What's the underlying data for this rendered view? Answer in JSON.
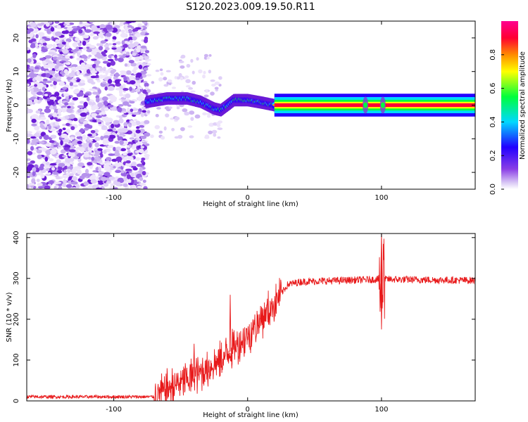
{
  "title": "S120.2023.009.19.50.R11",
  "chart_data": [
    {
      "type": "heatmap",
      "xlabel": "Height of straight line (km)",
      "ylabel": "Frequency (Hz)",
      "xlim": [
        -165,
        170
      ],
      "ylim": [
        -25,
        25
      ],
      "x_ticks": [
        -100,
        0,
        100
      ],
      "y_ticks": [
        -20,
        -10,
        0,
        10,
        20
      ],
      "colorbar": {
        "label": "Normalized spectral amplitude",
        "range": [
          0,
          1
        ],
        "ticks": [
          0.0,
          0.2,
          0.4,
          0.6,
          0.8
        ],
        "colors": [
          "#ffffff",
          "#cdb4f2",
          "#7a2ae0",
          "#2200ff",
          "#00d8ff",
          "#00ff3c",
          "#ffff00",
          "#ff6e00",
          "#ff0032",
          "#ff0090"
        ]
      },
      "tone_frequency_track": [
        {
          "x": -75,
          "y": 1
        },
        {
          "x": -60,
          "y": 2
        },
        {
          "x": -45,
          "y": 2
        },
        {
          "x": -35,
          "y": 1
        },
        {
          "x": -25,
          "y": -1
        },
        {
          "x": -20,
          "y": -1.5
        },
        {
          "x": -15,
          "y": 0
        },
        {
          "x": -10,
          "y": 1.5
        },
        {
          "x": 0,
          "y": 1.5
        },
        {
          "x": 10,
          "y": 0.8
        },
        {
          "x": 20,
          "y": 0
        },
        {
          "x": 170,
          "y": 0
        }
      ],
      "noise_region_x": [
        -165,
        -75
      ]
    },
    {
      "type": "line",
      "xlabel": "Height of straight line (km)",
      "ylabel": "SNR (10 * v/v)",
      "xlim": [
        -165,
        170
      ],
      "ylim": [
        0,
        410
      ],
      "x_ticks": [
        -100,
        0,
        100
      ],
      "y_ticks": [
        0,
        100,
        200,
        300,
        400
      ],
      "series": [
        {
          "color": "#e8191a",
          "trend": [
            {
              "x": -165,
              "y": 10
            },
            {
              "x": -70,
              "y": 10
            },
            {
              "x": -60,
              "y": 30
            },
            {
              "x": -40,
              "y": 60
            },
            {
              "x": -20,
              "y": 100
            },
            {
              "x": 0,
              "y": 160
            },
            {
              "x": 20,
              "y": 240
            },
            {
              "x": 30,
              "y": 285
            },
            {
              "x": 40,
              "y": 292
            },
            {
              "x": 100,
              "y": 298
            },
            {
              "x": 170,
              "y": 295
            }
          ],
          "notable_extremes": [
            {
              "x": -40,
              "y": 140
            },
            {
              "x": -13,
              "y": 260
            },
            {
              "x": 100,
              "y": 410
            },
            {
              "x": 100,
              "y": 175
            }
          ]
        }
      ]
    }
  ]
}
